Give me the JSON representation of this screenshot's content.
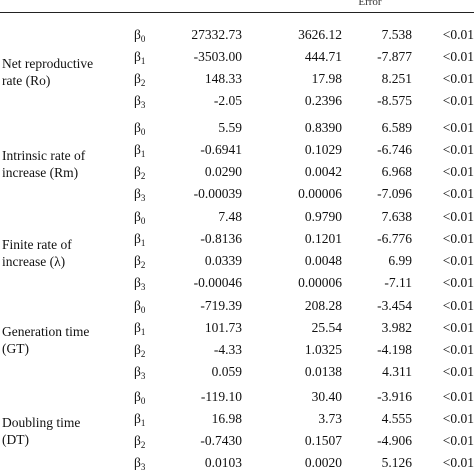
{
  "header": {
    "fragment": "Error"
  },
  "groups": [
    {
      "label_lines": [
        "Net reproductive",
        "rate (Ro)"
      ],
      "rows": [
        {
          "beta": "β",
          "sub": "0",
          "estimate": "27332.73",
          "se": "3626.12",
          "t": "7.538",
          "p": "<0.01"
        },
        {
          "beta": "β",
          "sub": "1",
          "estimate": "-3503.00",
          "se": "444.71",
          "t": "-7.877",
          "p": "<0.01"
        },
        {
          "beta": "β",
          "sub": "2",
          "estimate": "148.33",
          "se": "17.98",
          "t": "8.251",
          "p": "<0.01"
        },
        {
          "beta": "β",
          "sub": "3",
          "estimate": "-2.05",
          "se": "0.2396",
          "t": "-8.575",
          "p": "<0.01"
        }
      ]
    },
    {
      "label_lines": [
        "Intrinsic rate of",
        "increase (Rm)"
      ],
      "rows": [
        {
          "beta": "β",
          "sub": "0",
          "estimate": "5.59",
          "se": "0.8390",
          "t": "6.589",
          "p": "<0.01"
        },
        {
          "beta": "β",
          "sub": "1",
          "estimate": "-0.6941",
          "se": "0.1029",
          "t": "-6.746",
          "p": "<0.01"
        },
        {
          "beta": "β",
          "sub": "2",
          "estimate": "0.0290",
          "se": "0.0042",
          "t": "6.968",
          "p": "<0.01"
        },
        {
          "beta": "β",
          "sub": "3",
          "estimate": "-0.00039",
          "se": "0.00006",
          "t": "-7.096",
          "p": "<0.01"
        }
      ]
    },
    {
      "label_lines": [
        "Finite rate of",
        "increase (λ)"
      ],
      "rows": [
        {
          "beta": "β",
          "sub": "0",
          "estimate": "7.48",
          "se": "0.9790",
          "t": "7.638",
          "p": "<0.01"
        },
        {
          "beta": "β",
          "sub": "1",
          "estimate": "-0.8136",
          "se": "0.1201",
          "t": "-6.776",
          "p": "<0.01"
        },
        {
          "beta": "β",
          "sub": "2",
          "estimate": "0.0339",
          "se": "0.0048",
          "t": "6.99",
          "p": "<0.01"
        },
        {
          "beta": "β",
          "sub": "3",
          "estimate": "-0.00046",
          "se": "0.00006",
          "t": "-7.11",
          "p": "<0.01"
        }
      ]
    },
    {
      "label_lines": [
        "Generation time",
        "(GT)"
      ],
      "rows": [
        {
          "beta": "β",
          "sub": "0",
          "estimate": "-719.39",
          "se": "208.28",
          "t": "-3.454",
          "p": "<0.01"
        },
        {
          "beta": "β",
          "sub": "1",
          "estimate": "101.73",
          "se": "25.54",
          "t": "3.982",
          "p": "<0.01"
        },
        {
          "beta": "β",
          "sub": "2",
          "estimate": "-4.33",
          "se": "1.0325",
          "t": "-4.198",
          "p": "<0.01"
        },
        {
          "beta": "β",
          "sub": "3",
          "estimate": "0.059",
          "se": "0.0138",
          "t": "4.311",
          "p": "<0.01"
        }
      ]
    },
    {
      "label_lines": [
        "Doubling time",
        "(DT)"
      ],
      "rows": [
        {
          "beta": "β",
          "sub": "0",
          "estimate": "-119.10",
          "se": "30.40",
          "t": "-3.916",
          "p": "<0.01"
        },
        {
          "beta": "β",
          "sub": "1",
          "estimate": "16.98",
          "se": "3.73",
          "t": "4.555",
          "p": "<0.01"
        },
        {
          "beta": "β",
          "sub": "2",
          "estimate": "-0.7430",
          "se": "0.1507",
          "t": "-4.906",
          "p": "<0.01"
        },
        {
          "beta": "β",
          "sub": "3",
          "estimate": "0.0103",
          "se": "0.0020",
          "t": "5.126",
          "p": "<0.01"
        }
      ]
    }
  ]
}
